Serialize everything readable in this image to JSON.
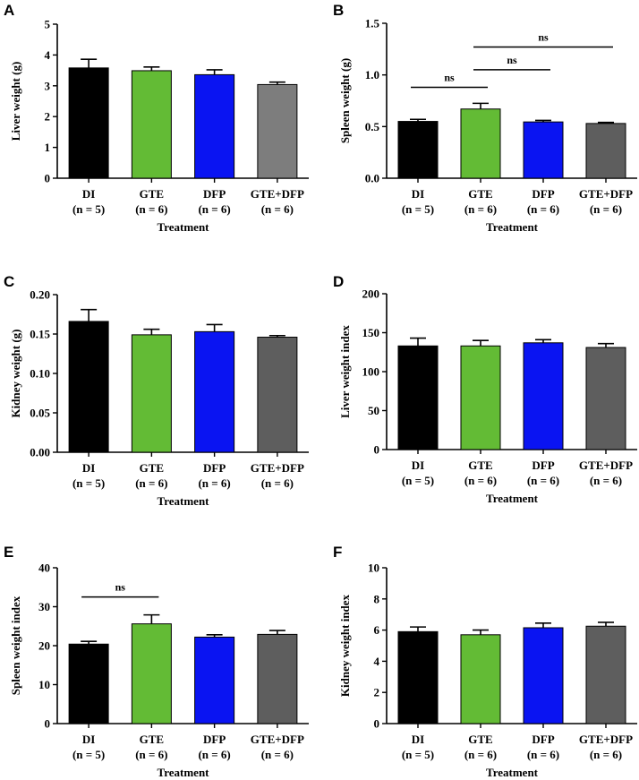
{
  "chart_data": [
    {
      "panel": "A",
      "type": "bar",
      "categories": [
        "DI",
        "GTE",
        "DFP",
        "GTE+DFP"
      ],
      "group_sizes": [
        "(n = 5)",
        "(n = 6)",
        "(n = 6)",
        "(n = 6)"
      ],
      "values": [
        3.58,
        3.49,
        3.36,
        3.04
      ],
      "errors": [
        0.28,
        0.12,
        0.16,
        0.08
      ],
      "colors": [
        "#000000",
        "#63bb35",
        "#0a14f2",
        "#7d7d7d"
      ],
      "xlabel": "Treatment",
      "ylabel": "Liver weight (g)",
      "ylim": [
        0,
        5
      ],
      "yticks": [
        "0",
        "1",
        "2",
        "3",
        "4",
        "5"
      ],
      "annotations": []
    },
    {
      "panel": "B",
      "type": "bar",
      "categories": [
        "DI",
        "GTE",
        "DFP",
        "GTE+DFP"
      ],
      "group_sizes": [
        "(n = 5)",
        "(n = 6)",
        "(n = 6)",
        "(n = 6)"
      ],
      "values": [
        0.55,
        0.67,
        0.545,
        0.53
      ],
      "errors": [
        0.02,
        0.055,
        0.015,
        0.01
      ],
      "colors": [
        "#000000",
        "#63bb35",
        "#0a14f2",
        "#5e5e5e"
      ],
      "xlabel": "Treatment",
      "ylabel": "Spleen weight (g)",
      "ylim": [
        0,
        1.5
      ],
      "yticks": [
        "0.0",
        "0.5",
        "1.0",
        "1.5"
      ],
      "annotations": [
        {
          "from": 0,
          "to": 1,
          "y": 0.88,
          "label": "ns"
        },
        {
          "from": 1,
          "to": 2,
          "y": 1.05,
          "label": "ns"
        },
        {
          "from": 1,
          "to": 3,
          "y": 1.27,
          "label": "ns"
        }
      ]
    },
    {
      "panel": "C",
      "type": "bar",
      "categories": [
        "DI",
        "GTE",
        "DFP",
        "GTE+DFP"
      ],
      "group_sizes": [
        "(n = 5)",
        "(n = 6)",
        "(n = 6)",
        "(n = 6)"
      ],
      "values": [
        0.166,
        0.149,
        0.153,
        0.146
      ],
      "errors": [
        0.015,
        0.007,
        0.009,
        0.002
      ],
      "colors": [
        "#000000",
        "#63bb35",
        "#0a14f2",
        "#5e5e5e"
      ],
      "xlabel": "Treatment",
      "ylabel": "Kidney weight (g)",
      "ylim": [
        0,
        0.2
      ],
      "yticks": [
        "0.00",
        "0.05",
        "0.10",
        "0.15",
        "0.20"
      ],
      "annotations": []
    },
    {
      "panel": "D",
      "type": "bar",
      "categories": [
        "DI",
        "GTE",
        "DFP",
        "GTE+DFP"
      ],
      "group_sizes": [
        "(n = 5)",
        "(n = 6)",
        "(n = 6)",
        "(n = 6)"
      ],
      "values": [
        133,
        133,
        137,
        131
      ],
      "errors": [
        10,
        7,
        4,
        5
      ],
      "colors": [
        "#000000",
        "#63bb35",
        "#0a14f2",
        "#5e5e5e"
      ],
      "xlabel": "Treatment",
      "ylabel": "Liver weight index",
      "ylim": [
        0,
        200
      ],
      "yticks": [
        "0",
        "50",
        "100",
        "150",
        "200"
      ],
      "annotations": []
    },
    {
      "panel": "E",
      "type": "bar",
      "categories": [
        "DI",
        "GTE",
        "DFP",
        "GTE+DFP"
      ],
      "group_sizes": [
        "(n = 5)",
        "(n = 6)",
        "(n = 6)",
        "(n = 6)"
      ],
      "values": [
        20.4,
        25.6,
        22.2,
        22.9
      ],
      "errors": [
        0.7,
        2.3,
        0.6,
        1.0
      ],
      "colors": [
        "#000000",
        "#63bb35",
        "#0a14f2",
        "#5e5e5e"
      ],
      "xlabel": "Treatment",
      "ylabel": "Spleen weight index",
      "ylim": [
        0,
        40
      ],
      "yticks": [
        "0",
        "10",
        "20",
        "30",
        "40"
      ],
      "annotations": [
        {
          "from": 0,
          "to": 1,
          "y": 32.5,
          "label": "ns"
        }
      ]
    },
    {
      "panel": "F",
      "type": "bar",
      "categories": [
        "DI",
        "GTE",
        "DFP",
        "GTE+DFP"
      ],
      "group_sizes": [
        "(n = 5)",
        "(n = 6)",
        "(n = 6)",
        "(n = 6)"
      ],
      "values": [
        5.9,
        5.7,
        6.15,
        6.25
      ],
      "errors": [
        0.3,
        0.3,
        0.3,
        0.25
      ],
      "colors": [
        "#000000",
        "#63bb35",
        "#0a14f2",
        "#5e5e5e"
      ],
      "xlabel": "Treatment",
      "ylabel": "Kidney weight index",
      "ylim": [
        0,
        10
      ],
      "yticks": [
        "0",
        "2",
        "4",
        "6",
        "8",
        "10"
      ],
      "annotations": []
    }
  ]
}
